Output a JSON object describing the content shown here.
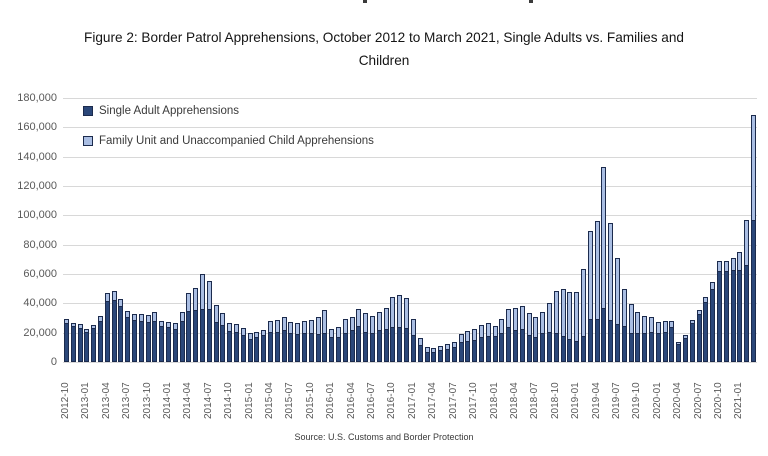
{
  "title": {
    "line1": "Figure 2: Border Patrol Apprehensions, October 2012 to March 2021, Single Adults vs. Families and",
    "line2": "Children"
  },
  "legend": {
    "items": [
      {
        "label": "Single Adult Apprehensions",
        "color": "#2b4779"
      },
      {
        "label": "Family Unit and Unaccompanied Child Apprehensions",
        "color": "#aabee3"
      }
    ]
  },
  "source_note": "Source: U.S. Customs and Border Protection",
  "chart_data": {
    "type": "bar",
    "stacked": true,
    "title": "Figure 2: Border Patrol Apprehensions, October 2012 to March 2021, Single Adults vs. Families and Children",
    "xlabel": "",
    "ylabel": "",
    "ylim": [
      0,
      180000
    ],
    "ytick_step": 20000,
    "ytick_labels": [
      "0",
      "20,000",
      "40,000",
      "60,000",
      "80,000",
      "100,000",
      "120,000",
      "140,000",
      "160,000",
      "180,000"
    ],
    "grid": true,
    "legend_position": "top-left-inside",
    "x_label_every": 3,
    "bar_border_color": "#1c2b4d",
    "gridline_color": "#d8d8d8",
    "axis_text_color": "#595959",
    "categories": [
      "2012-10",
      "2012-11",
      "2012-12",
      "2013-01",
      "2013-02",
      "2013-03",
      "2013-04",
      "2013-05",
      "2013-06",
      "2013-07",
      "2013-08",
      "2013-09",
      "2013-10",
      "2013-11",
      "2013-12",
      "2014-01",
      "2014-02",
      "2014-03",
      "2014-04",
      "2014-05",
      "2014-06",
      "2014-07",
      "2014-08",
      "2014-09",
      "2014-10",
      "2014-11",
      "2014-12",
      "2015-01",
      "2015-02",
      "2015-03",
      "2015-04",
      "2015-05",
      "2015-06",
      "2015-07",
      "2015-08",
      "2015-09",
      "2015-10",
      "2015-11",
      "2015-12",
      "2016-01",
      "2016-02",
      "2016-03",
      "2016-04",
      "2016-05",
      "2016-06",
      "2016-07",
      "2016-08",
      "2016-09",
      "2016-10",
      "2016-11",
      "2016-12",
      "2017-01",
      "2017-02",
      "2017-03",
      "2017-04",
      "2017-05",
      "2017-06",
      "2017-07",
      "2017-08",
      "2017-09",
      "2017-10",
      "2017-11",
      "2017-12",
      "2018-01",
      "2018-02",
      "2018-03",
      "2018-04",
      "2018-05",
      "2018-06",
      "2018-07",
      "2018-08",
      "2018-09",
      "2018-10",
      "2018-11",
      "2018-12",
      "2019-01",
      "2019-02",
      "2019-03",
      "2019-04",
      "2019-05",
      "2019-06",
      "2019-07",
      "2019-08",
      "2019-09",
      "2019-10",
      "2019-11",
      "2019-12",
      "2020-01",
      "2020-02",
      "2020-03",
      "2020-04",
      "2020-05",
      "2020-06",
      "2020-07",
      "2020-08",
      "2020-09",
      "2020-10",
      "2020-11",
      "2020-12",
      "2021-01",
      "2021-02",
      "2021-03"
    ],
    "series": [
      {
        "name": "Single Adult Apprehensions",
        "color": "#2b4779",
        "values": [
          26500,
          24300,
          23300,
          20600,
          23000,
          28300,
          41500,
          42500,
          38000,
          30600,
          28500,
          28300,
          27500,
          28000,
          24500,
          24000,
          22800,
          27800,
          34500,
          35500,
          36000,
          36300,
          27500,
          25000,
          21000,
          20300,
          18400,
          16000,
          17000,
          18200,
          20500,
          20500,
          21500,
          20000,
          19300,
          19700,
          19600,
          19000,
          19500,
          16800,
          17300,
          19500,
          21800,
          24500,
          20700,
          19500,
          21800,
          22300,
          24100,
          23600,
          23000,
          18400,
          11600,
          7000,
          6500,
          8000,
          9000,
          10500,
          13500,
          14500,
          15000,
          17000,
          18000,
          17500,
          20000,
          24000,
          21800,
          22300,
          18400,
          17000,
          19500,
          20700,
          20000,
          18000,
          16000,
          14300,
          18000,
          29500,
          29000,
          37000,
          28500,
          26000,
          24500,
          19800,
          19500,
          19800,
          20500,
          19500,
          20500,
          24000,
          12500,
          16600,
          26300,
          32900,
          41000,
          49500,
          61800,
          62000,
          62500,
          62500,
          66000,
          96600
        ]
      },
      {
        "name": "Family Unit and Unaccompanied Child Apprehensions",
        "color": "#aabee3",
        "values": [
          2600,
          2400,
          2300,
          2100,
          2500,
          3200,
          5500,
          6000,
          5300,
          4100,
          4000,
          4400,
          4800,
          5900,
          3600,
          3400,
          3600,
          6100,
          12500,
          15000,
          24000,
          19200,
          11500,
          8600,
          5600,
          5700,
          5000,
          3500,
          3700,
          3600,
          7500,
          8100,
          9000,
          7500,
          7500,
          8500,
          9000,
          12000,
          16000,
          5500,
          6300,
          9800,
          9100,
          11400,
          12500,
          11900,
          12500,
          14300,
          20400,
          22100,
          20400,
          10700,
          4500,
          3500,
          2800,
          2900,
          3300,
          3400,
          5400,
          6900,
          7300,
          8200,
          8400,
          7000,
          9100,
          12000,
          15300,
          16100,
          14800,
          13500,
          14800,
          19300,
          28500,
          31500,
          31500,
          33200,
          45500,
          59500,
          67000,
          96000,
          66000,
          45000,
          25500,
          19700,
          14500,
          11700,
          10000,
          7500,
          7500,
          4000,
          1200,
          1800,
          2300,
          2600,
          3500,
          5000,
          7400,
          7000,
          8600,
          12800,
          30500,
          71600
        ]
      }
    ]
  }
}
